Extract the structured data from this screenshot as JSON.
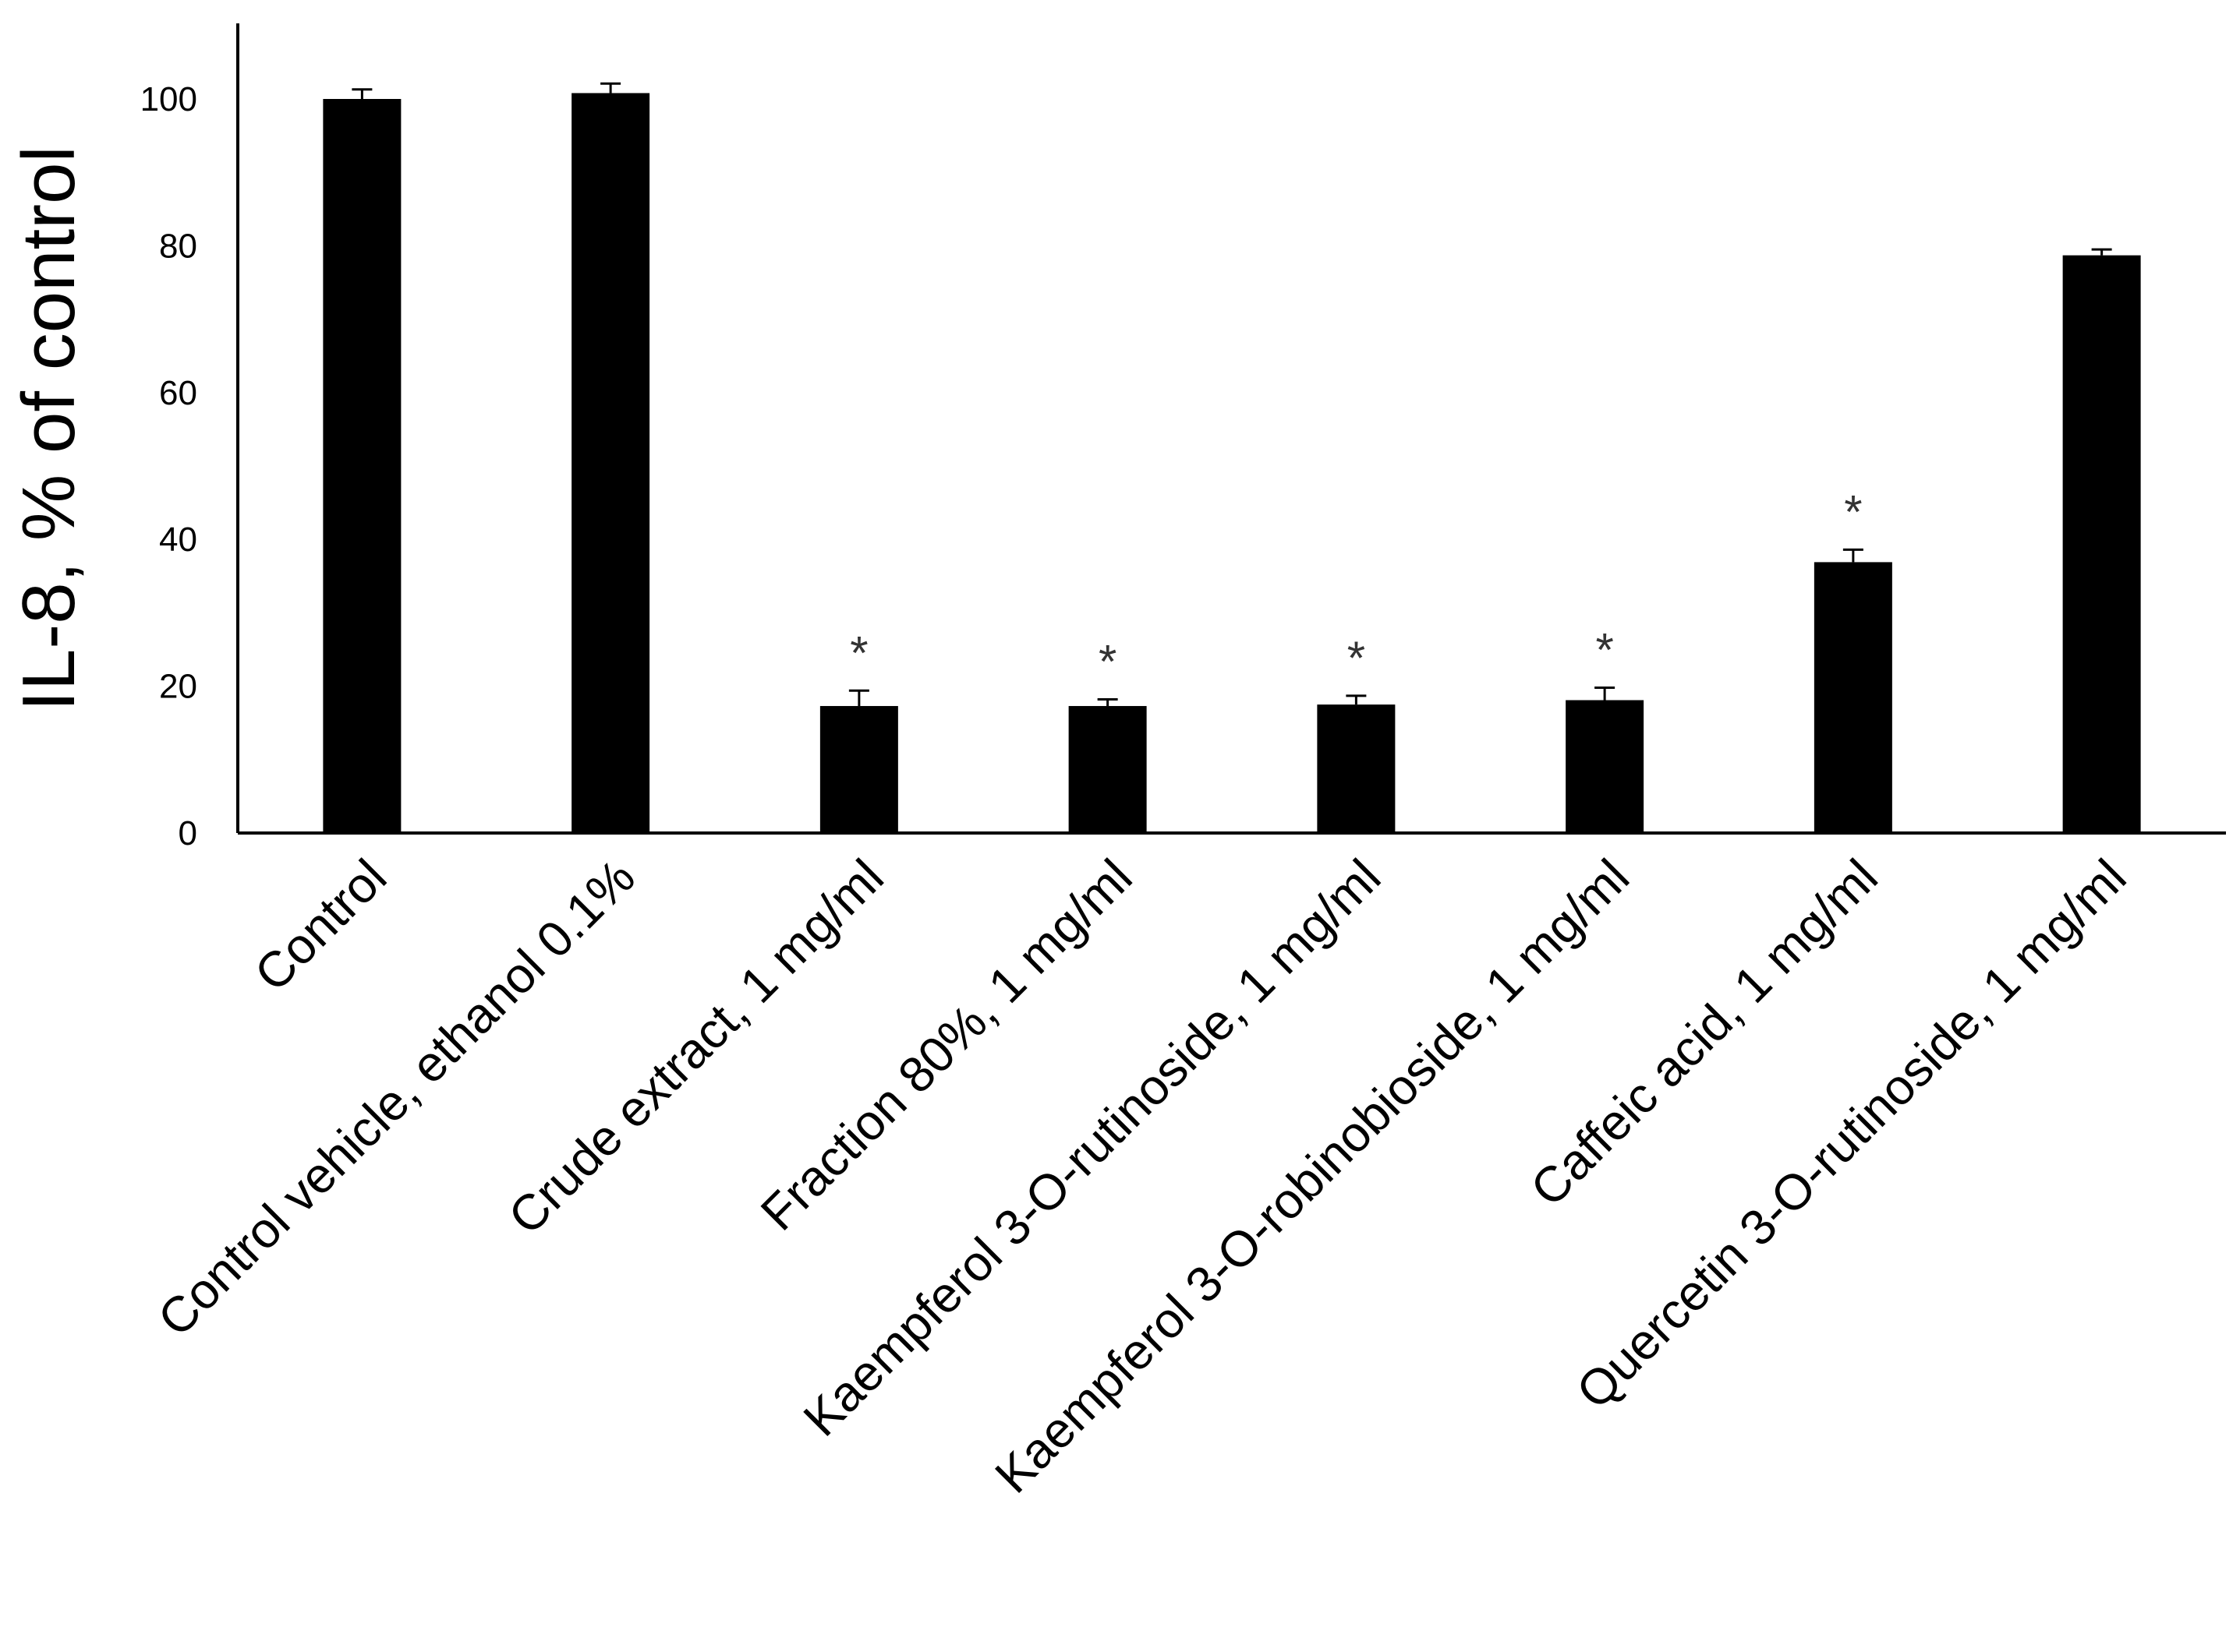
{
  "chart_data": {
    "type": "bar",
    "ylabel": "IL-8, % of control",
    "xlabel": "",
    "ylim": [
      0,
      110
    ],
    "yticks": [
      0,
      20,
      40,
      60,
      80,
      100
    ],
    "grid": false,
    "categories": [
      "Control",
      "Control vehicle, ethanol 0.1%",
      "Crude extract, 1 mg/ml",
      "Fraction 80%, 1 mg/ml",
      "Kaempferol 3-O-rutinoside, 1 mg/ml",
      "Kaempferol 3-O-robinobioside, 1 mg/ml",
      "Caffeic acid, 1 mg/ml",
      "Quercetin 3-O-rutinoside, 1 mg/ml"
    ],
    "values": [
      100,
      100.8,
      17.3,
      17.3,
      17.5,
      18.1,
      36.9,
      78.7
    ],
    "errors": [
      1.3,
      1.3,
      2.1,
      0.9,
      1.2,
      1.7,
      1.7,
      0.8
    ],
    "significance": [
      "",
      "",
      "*",
      "*",
      "*",
      "*",
      "*",
      ""
    ],
    "bar_color": "#000000"
  }
}
